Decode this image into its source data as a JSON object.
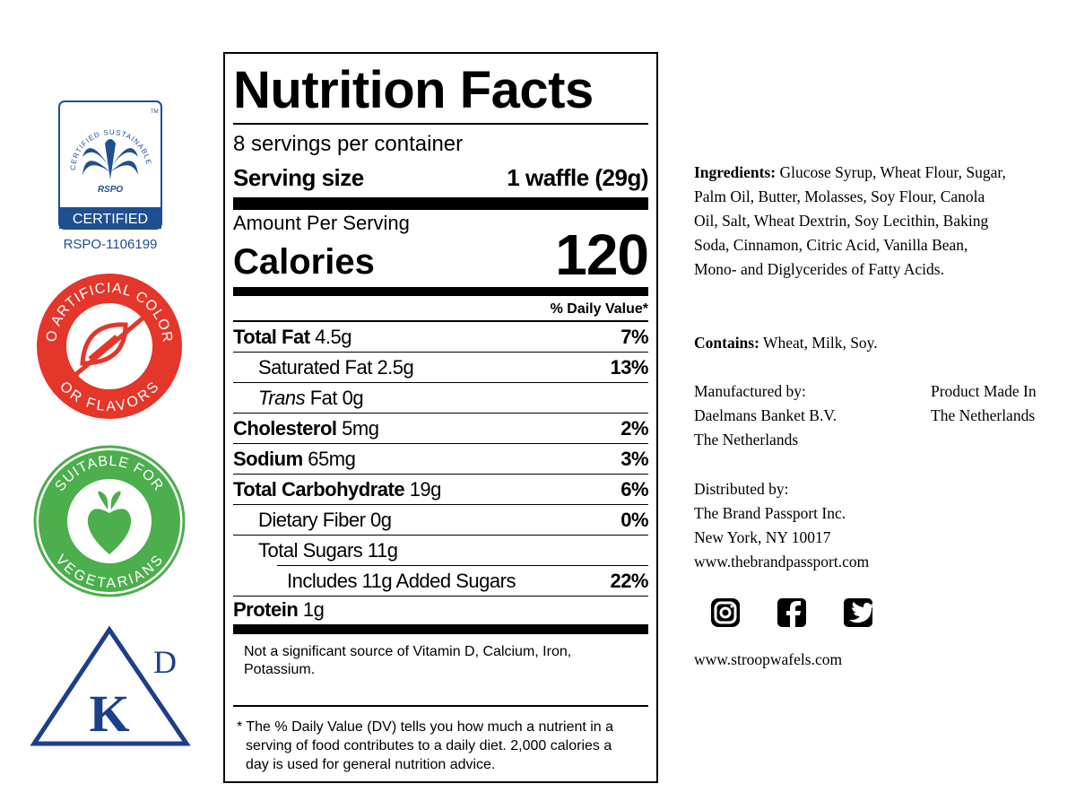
{
  "badges": {
    "rspo": {
      "arc_text": "CERTIFIED SUSTAINABLE PALM OIL",
      "tm": "TM",
      "brand": "RSPO",
      "certified": "CERTIFIED",
      "id": "RSPO-1106199"
    },
    "no_artificial": {
      "top": "NO ARTIFICIAL COLORS",
      "bottom": "OR FLAVORS"
    },
    "vegetarian": {
      "top": "SUITABLE FOR",
      "bottom": "VEGETARIANS"
    },
    "kosher": {
      "letter": "K",
      "superscript": "D"
    }
  },
  "nutrition": {
    "title": "Nutrition Facts",
    "servings": "8 servings per container",
    "serving_size": {
      "label": "Serving size",
      "value": "1 waffle (29g)"
    },
    "amount_per_serving": "Amount Per Serving",
    "calories": {
      "label": "Calories",
      "value": "120"
    },
    "daily_value_header": "% Daily Value*",
    "rows": [
      {
        "name": "Total Fat",
        "amount": "4.5g",
        "dv": "7%"
      },
      {
        "name": "Saturated Fat",
        "amount": "2.5g",
        "dv": "13%"
      },
      {
        "name_prefix": "Trans",
        "name": "Fat",
        "amount": "0g"
      },
      {
        "name": "Cholesterol",
        "amount": "5mg",
        "dv": "2%"
      },
      {
        "name": "Sodium",
        "amount": "65mg",
        "dv": "3%"
      },
      {
        "name": "Total Carbohydrate",
        "amount": "19g",
        "dv": "6%"
      },
      {
        "name": "Dietary Fiber",
        "amount": "0g",
        "dv": "0%"
      },
      {
        "name": "Total Sugars",
        "amount": "11g"
      },
      {
        "name": "Includes 11g Added Sugars",
        "dv": "22%"
      },
      {
        "name": "Protein",
        "amount": "1g"
      }
    ],
    "footnote_vitamins": "Not a significant source of Vitamin D, Calcium, Iron, Potassium.",
    "footnote_dv": "* The % Daily Value (DV) tells you how much a nutrient in a serving of food contributes to a daily diet. 2,000 calories a day is used for general nutrition advice."
  },
  "info": {
    "ingredients": {
      "label": "Ingredients:",
      "text": "Glucose Syrup, Wheat Flour, Sugar, Palm Oil, Butter, Molasses, Soy Flour, Canola Oil, Salt, Wheat Dextrin,  Soy Lecithin, Baking Soda, Cinnamon, Citric Acid, Vanilla Bean, Mono- and Diglycerides of Fatty Acids."
    },
    "contains": {
      "label": "Contains:",
      "text": "Wheat, Milk, Soy."
    },
    "manufacturer": [
      "Manufactured by:",
      "Daelmans Banket B.V.",
      "The Netherlands"
    ],
    "origin": [
      "Product Made In",
      "The Netherlands"
    ],
    "distributor": [
      "Distributed by:",
      "The Brand Passport Inc.",
      "New York, NY 10017",
      "www.thebrandpassport.com"
    ],
    "website": "www.stroopwafels.com"
  }
}
